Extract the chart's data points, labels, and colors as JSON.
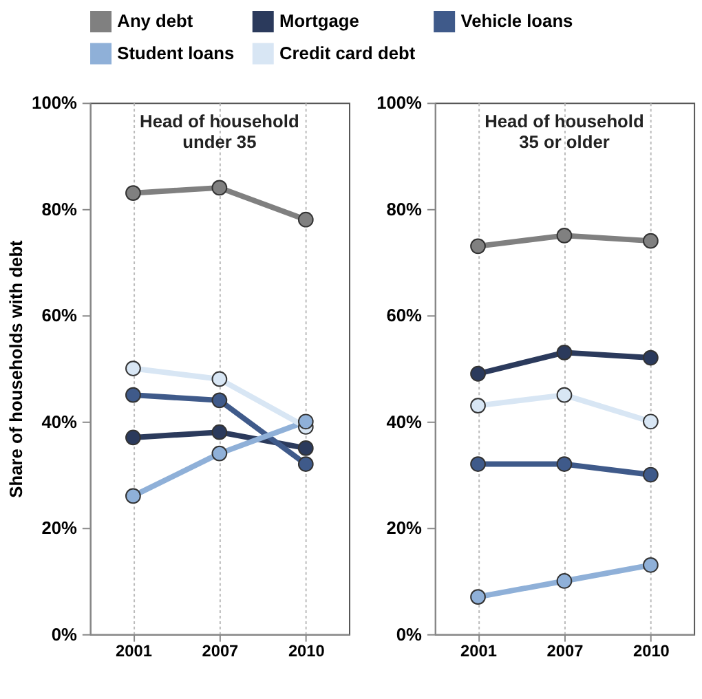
{
  "chart_data": [
    {
      "type": "line",
      "title": "Head of household\nunder 35",
      "ylabel": "Share of households with debt",
      "categories": [
        "2001",
        "2007",
        "2010"
      ],
      "ylim": [
        0,
        100
      ],
      "yticks": [
        {
          "value": 0,
          "label": "0%"
        },
        {
          "value": 20,
          "label": "20%"
        },
        {
          "value": 40,
          "label": "40%"
        },
        {
          "value": 60,
          "label": "60%"
        },
        {
          "value": 80,
          "label": "80%"
        },
        {
          "value": 100,
          "label": "100%"
        }
      ],
      "grid": "x",
      "legend": "top",
      "marker": "circle",
      "series": [
        {
          "name": "Any debt",
          "color": "#808080",
          "values": [
            83,
            84,
            78
          ]
        },
        {
          "name": "Mortgage",
          "color": "#2b3a5c",
          "values": [
            37,
            38,
            35
          ]
        },
        {
          "name": "Vehicle loans",
          "color": "#3f5a8a",
          "values": [
            45,
            44,
            32
          ]
        },
        {
          "name": "Student loans",
          "color": "#8fb0d8",
          "values": [
            26,
            34,
            40
          ]
        },
        {
          "name": "Credit card debt",
          "color": "#d8e6f4",
          "values": [
            50,
            48,
            39
          ]
        }
      ]
    },
    {
      "type": "line",
      "title": "Head of household\n35 or older",
      "categories": [
        "2001",
        "2007",
        "2010"
      ],
      "ylim": [
        0,
        100
      ],
      "yticks": [
        {
          "value": 0,
          "label": "0%"
        },
        {
          "value": 20,
          "label": "20%"
        },
        {
          "value": 40,
          "label": "40%"
        },
        {
          "value": 60,
          "label": "60%"
        },
        {
          "value": 80,
          "label": "80%"
        },
        {
          "value": 100,
          "label": "100%"
        }
      ],
      "grid": "x",
      "marker": "circle",
      "series": [
        {
          "name": "Any debt",
          "color": "#808080",
          "values": [
            73,
            75,
            74
          ]
        },
        {
          "name": "Mortgage",
          "color": "#2b3a5c",
          "values": [
            49,
            53,
            52
          ]
        },
        {
          "name": "Vehicle loans",
          "color": "#3f5a8a",
          "values": [
            32,
            32,
            30
          ]
        },
        {
          "name": "Student loans",
          "color": "#8fb0d8",
          "values": [
            7,
            10,
            13
          ]
        },
        {
          "name": "Credit card debt",
          "color": "#d8e6f4",
          "values": [
            43,
            45,
            40
          ]
        }
      ]
    }
  ]
}
